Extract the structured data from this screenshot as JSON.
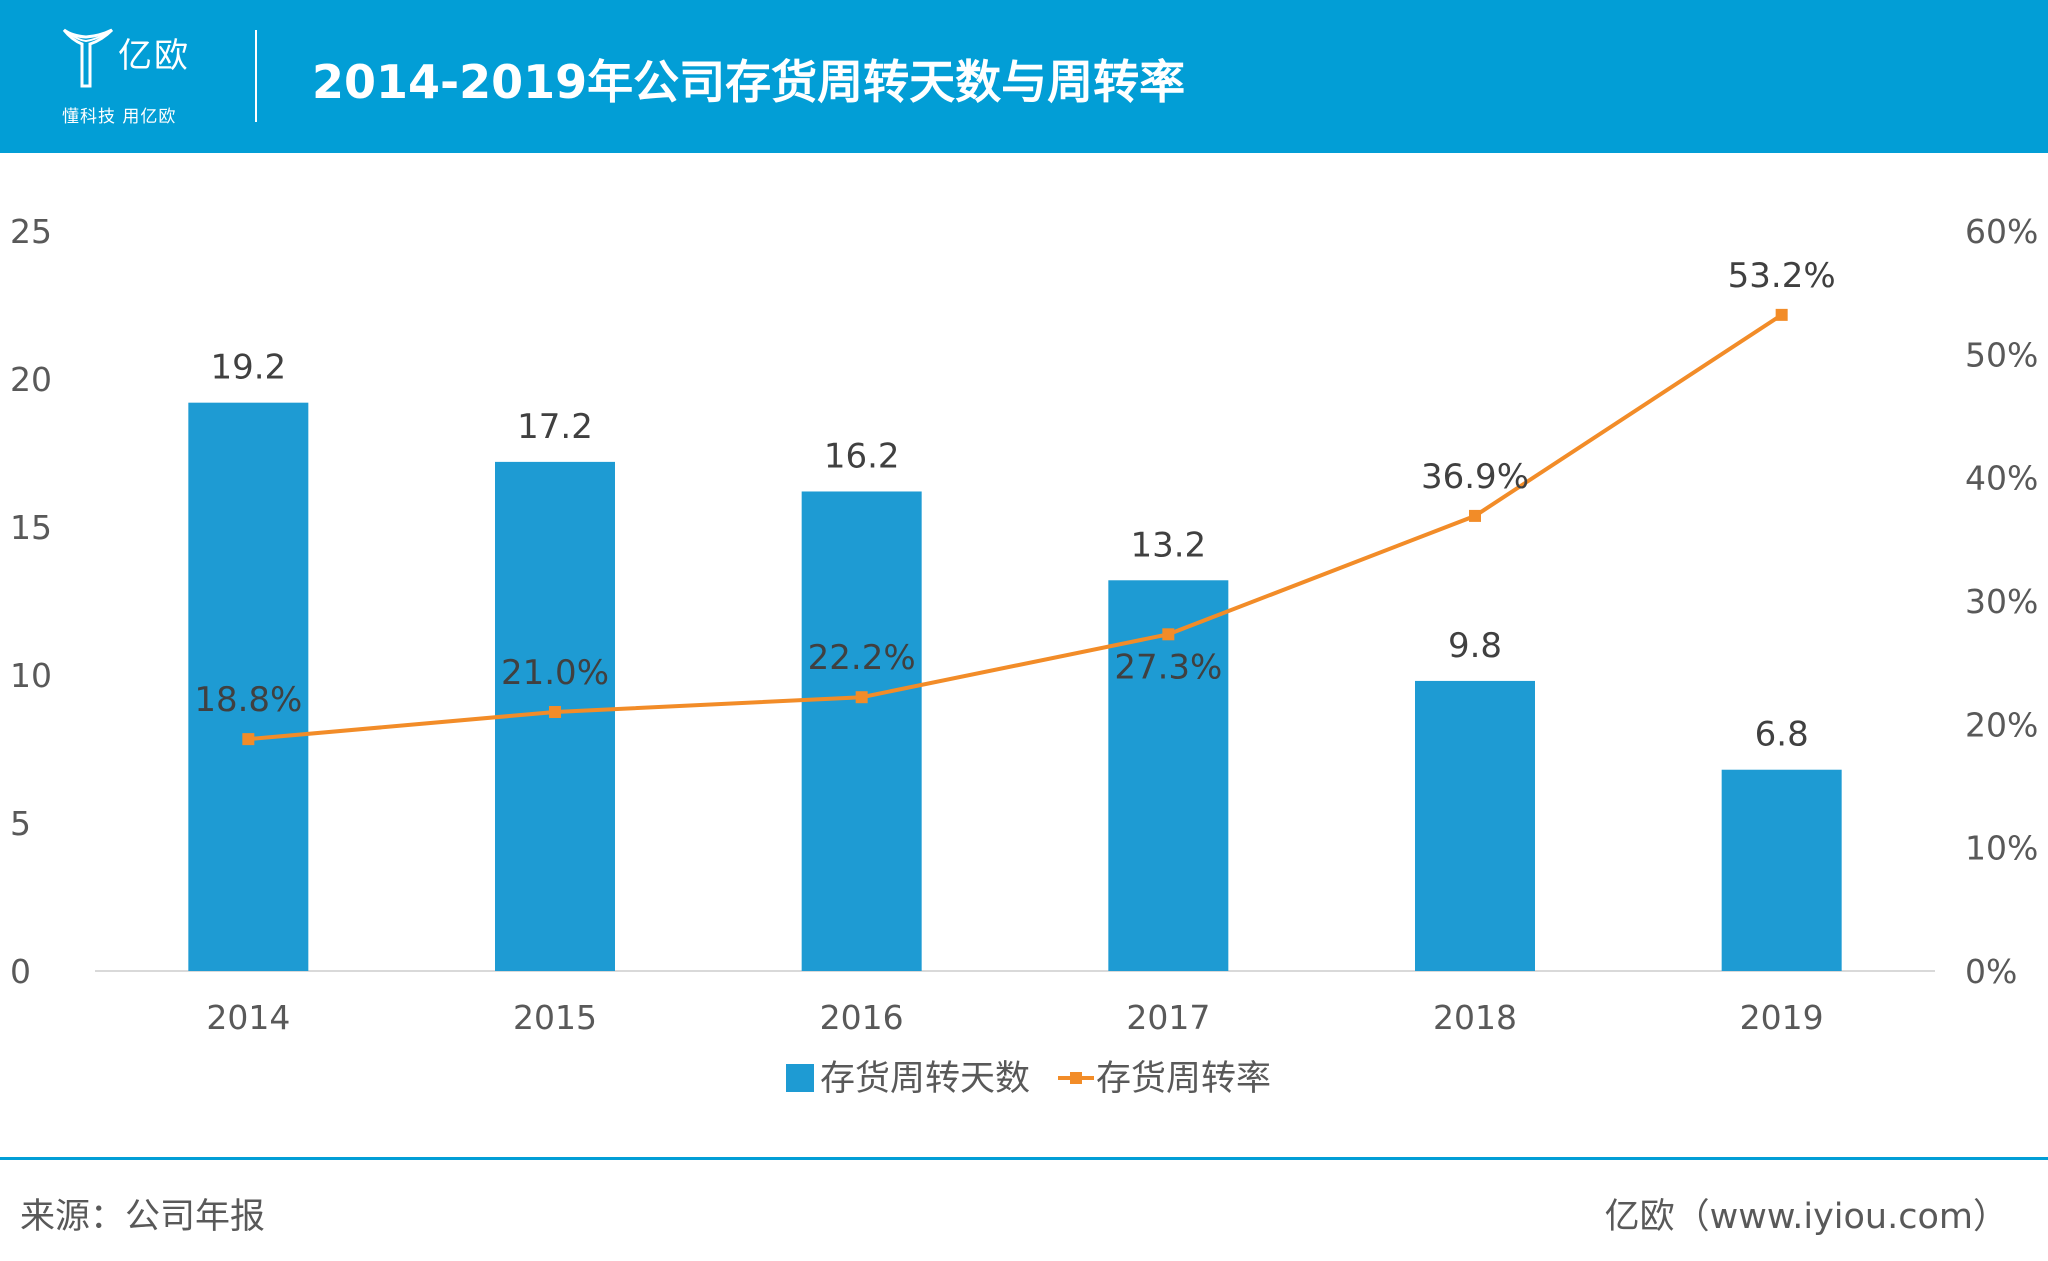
{
  "header": {
    "title": "2014-2019年公司存货周转天数与周转率",
    "logo_name": "亿欧",
    "logo_slogan": "懂科技 用亿欧",
    "background_color": "#029ed6"
  },
  "footer": {
    "source": "来源：公司年报",
    "site": "亿欧（www.iyiou.com）"
  },
  "chart_data": {
    "type": "bar",
    "title": "2014-2019年公司存货周转天数与周转率",
    "categories": [
      "2014",
      "2015",
      "2016",
      "2017",
      "2018",
      "2019"
    ],
    "series": [
      {
        "name": "存货周转天数",
        "type": "bar",
        "axis": "left",
        "values": [
          19.2,
          17.2,
          16.2,
          13.2,
          9.8,
          6.8
        ],
        "labels": [
          "19.2",
          "17.2",
          "16.2",
          "13.2",
          "9.8",
          "6.8"
        ],
        "color": "#1e9bd3"
      },
      {
        "name": "存货周转率",
        "type": "line",
        "axis": "right",
        "values": [
          18.8,
          21.0,
          22.2,
          27.3,
          36.9,
          53.2
        ],
        "labels": [
          "18.8%",
          "21.0%",
          "22.2%",
          "27.3%",
          "36.9%",
          "53.2%"
        ],
        "color": "#f28c28"
      }
    ],
    "y_left": {
      "min": 0,
      "max": 25,
      "ticks": [
        "0",
        "5",
        "10",
        "15",
        "20",
        "25"
      ]
    },
    "y_right": {
      "min": 0,
      "max": 60,
      "ticks": [
        "0%",
        "10%",
        "20%",
        "30%",
        "40%",
        "50%",
        "60%"
      ]
    },
    "legend": [
      "存货周转天数",
      "存货周转率"
    ],
    "legend_position": "bottom",
    "grid": false
  }
}
